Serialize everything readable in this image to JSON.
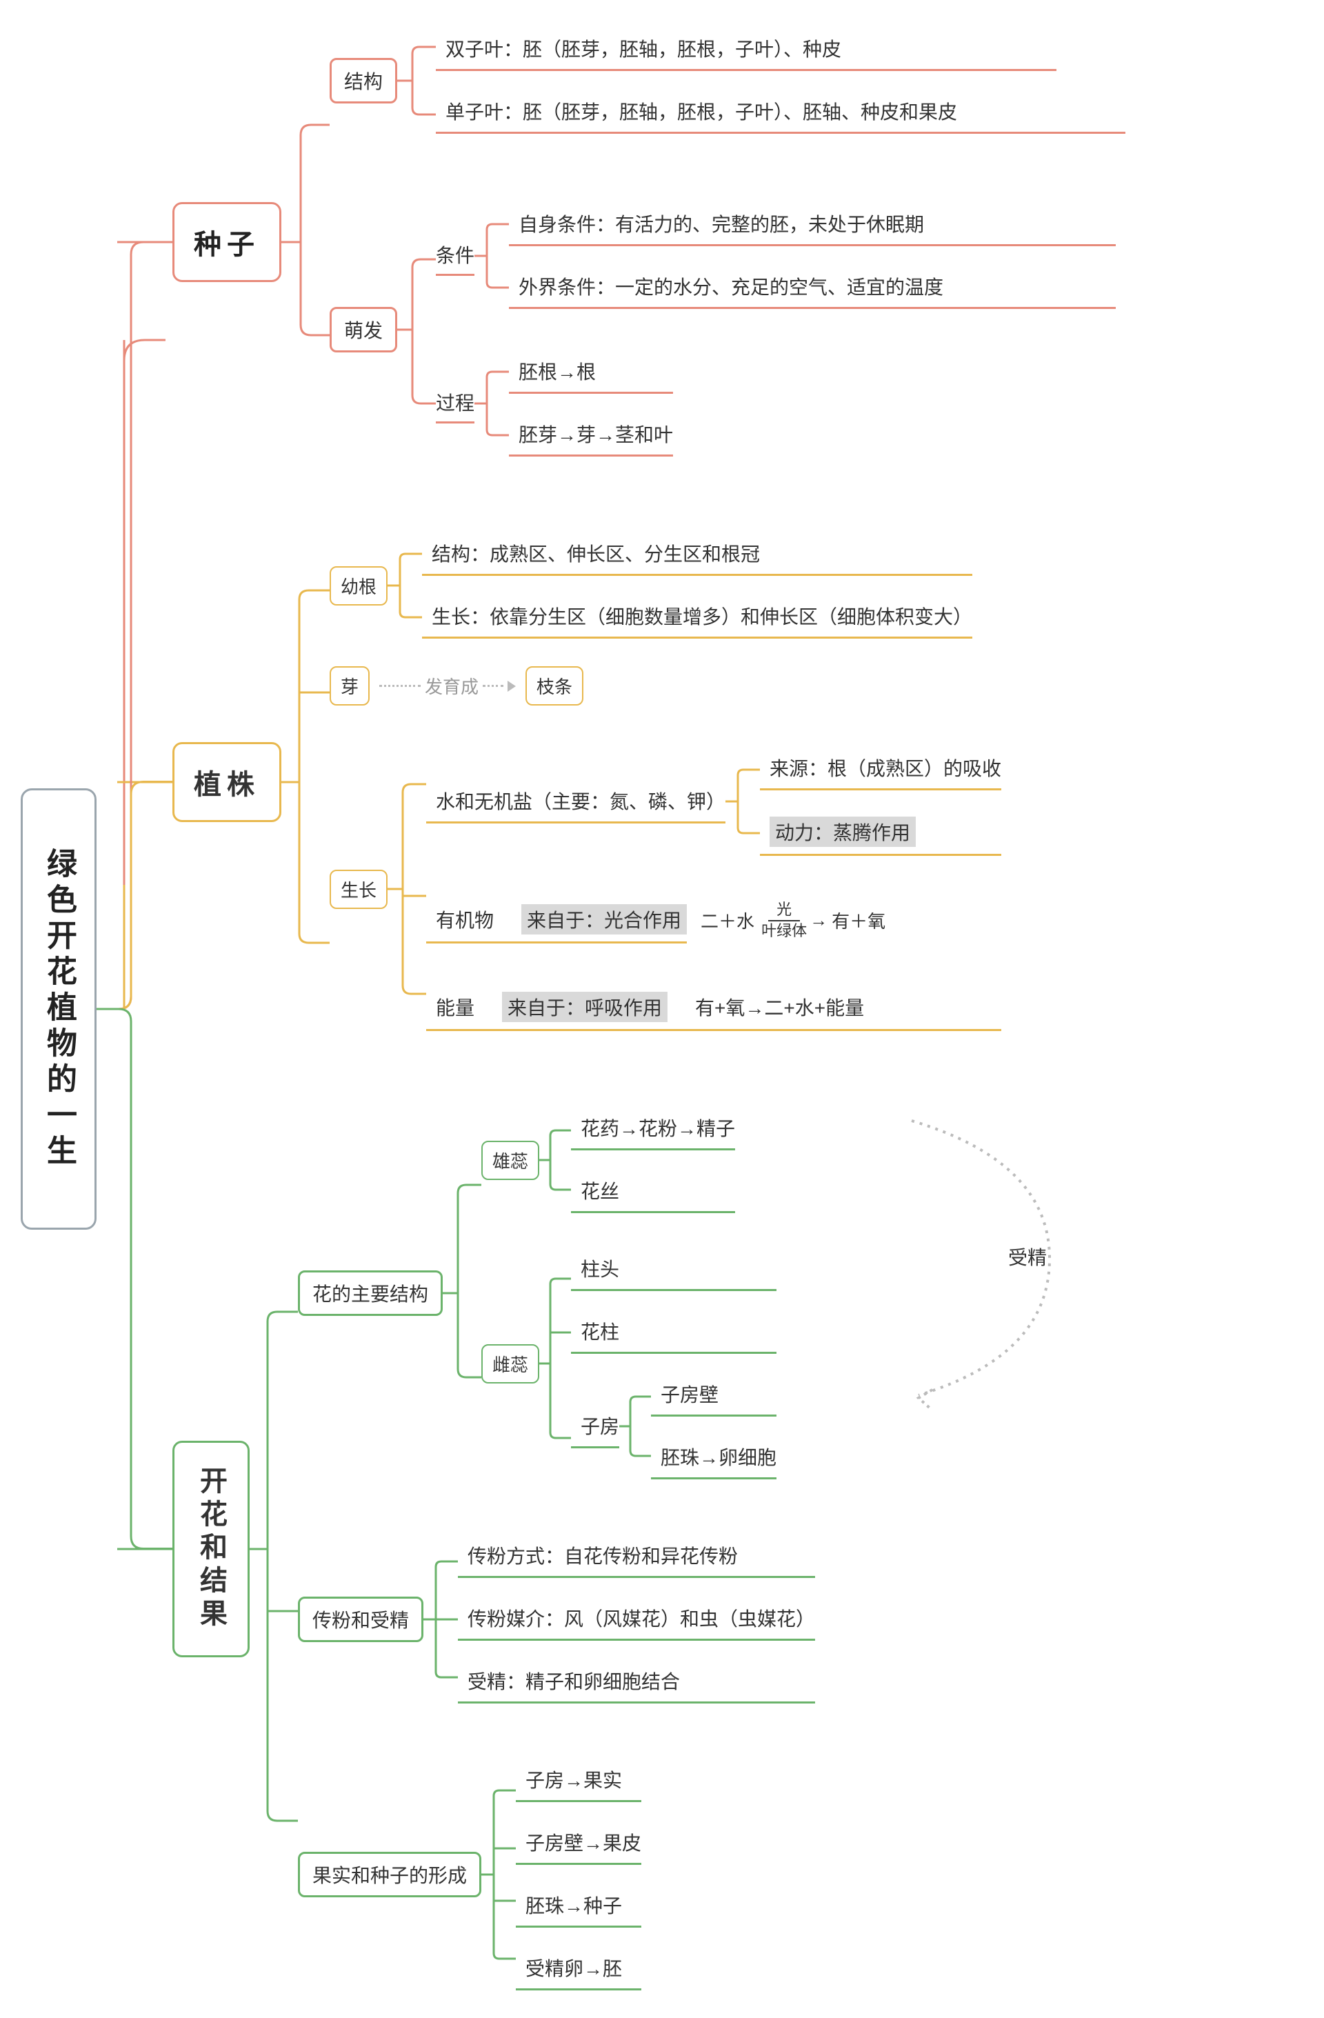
{
  "colors": {
    "root_border": "#9aa5ad",
    "seed": "#e78a7a",
    "plant": "#e8b84e",
    "flower": "#6bb36b",
    "highlight_bg": "#d9d9d9",
    "text": "#333333",
    "dashed": "#bbbbbb"
  },
  "typography": {
    "root_fontsize": 44,
    "box_fontsize": 40,
    "sub_fontsize": 28,
    "leaf_fontsize": 28,
    "font_family": "Microsoft YaHei"
  },
  "root": "绿色开花植物的一生",
  "seed": {
    "title": "种子",
    "structure": {
      "label": "结构",
      "dicot": "双子叶：胚（胚芽，胚轴，胚根，子叶）、种皮",
      "monocot": "单子叶：胚（胚芽，胚轴，胚根，子叶）、胚轴、种皮和果皮"
    },
    "germination": {
      "label": "萌发",
      "condition": {
        "label": "条件",
        "self": "自身条件：有活力的、完整的胚，未处于休眠期",
        "external": "外界条件：一定的水分、充足的空气、适宜的温度"
      },
      "process": {
        "label": "过程",
        "root": "胚根→根",
        "shoot": "胚芽→芽→茎和叶"
      }
    }
  },
  "plant": {
    "title": "植株",
    "young_root": {
      "label": "幼根",
      "structure": "结构：成熟区、伸长区、分生区和根冠",
      "growth": "生长：依靠分生区（细胞数量增多）和伸长区（细胞体积变大）"
    },
    "bud": {
      "label": "芽",
      "develop_text": "发育成",
      "result": "枝条"
    },
    "growth": {
      "label": "生长",
      "water": {
        "text": "水和无机盐（主要：氮、磷、钾）",
        "source": "来源：根（成熟区）的吸收",
        "power_label": "动力：蒸腾作用"
      },
      "organic": {
        "label": "有机物",
        "from": "来自于：光合作用",
        "formula_left": "二＋水",
        "formula_top": "光",
        "formula_bot": "叶绿体",
        "formula_right": "有＋氧"
      },
      "energy": {
        "label": "能量",
        "from": "来自于：呼吸作用",
        "formula": "有+氧→二+水+能量"
      }
    }
  },
  "flower": {
    "title": "开花和结果",
    "structure": {
      "label": "花的主要结构",
      "stamen": {
        "label": "雄蕊",
        "anther": "花药→花粉→精子",
        "filament": "花丝"
      },
      "pistil": {
        "label": "雌蕊",
        "stigma": "柱头",
        "style": "花柱",
        "ovary": {
          "label": "子房",
          "wall": "子房壁",
          "ovule": "胚珠→卵细胞"
        }
      },
      "fertilization_label": "受精"
    },
    "pollination": {
      "label": "传粉和受精",
      "method": "传粉方式：自花传粉和异花传粉",
      "medium": "传粉媒介：风（风媒花）和虫（虫媒花）",
      "fertilization": "受精：精子和卵细胞结合"
    },
    "fruit": {
      "label": "果实和种子的形成",
      "l1": "子房→果实",
      "l2": "子房壁→果皮",
      "l3": "胚珠→种子",
      "l4": "受精卵→胚"
    }
  }
}
